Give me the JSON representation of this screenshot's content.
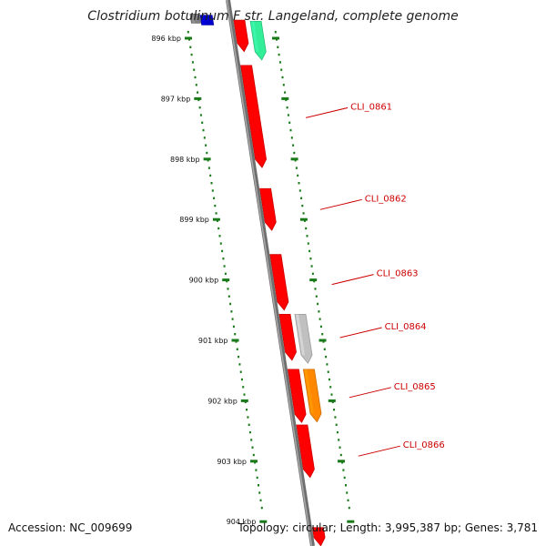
{
  "title": "Clostridium botulinum F str. Langeland, complete genome",
  "colors": {
    "backbone": "#808080",
    "ruler": "#1a7a1a",
    "label": "#cc0000",
    "label_line": "#cc0000"
  },
  "ruler_labels": [
    "896 kbp",
    "897 kbp",
    "898 kbp",
    "899 kbp",
    "900 kbp",
    "901 kbp",
    "902 kbp",
    "903 kbp",
    "904 kbp"
  ],
  "genes": [
    {
      "id": "top-left-gray",
      "start_kbp": 895.6,
      "end_kbp": 895.75,
      "color": "#808080",
      "strand": "minus"
    },
    {
      "id": "top-left-blue",
      "start_kbp": 895.62,
      "end_kbp": 895.78,
      "color": "#0000cc",
      "strand": "minus"
    },
    {
      "id": "red-a",
      "start_kbp": 895.7,
      "end_kbp": 896.22,
      "color": "#ff0000",
      "strand": "plus"
    },
    {
      "id": "teal-a",
      "start_kbp": 895.72,
      "end_kbp": 896.36,
      "color": "#33ee99",
      "strand": "plus"
    },
    {
      "id": "CLI_0861",
      "start_kbp": 896.45,
      "end_kbp": 898.14,
      "color": "#ff0000",
      "strand": "plus"
    },
    {
      "id": "CLI_0862",
      "start_kbp": 898.49,
      "end_kbp": 899.18,
      "color": "#ff0000",
      "strand": "plus"
    },
    {
      "id": "CLI_0863",
      "start_kbp": 899.58,
      "end_kbp": 900.5,
      "color": "#ff0000",
      "strand": "plus"
    },
    {
      "id": "CLI_0864",
      "start_kbp": 900.57,
      "end_kbp": 901.33,
      "color": "#ff0000",
      "strand": "plus"
    },
    {
      "id": "CLI_0864-gray",
      "start_kbp": 900.57,
      "end_kbp": 901.38,
      "color": "#c0c0c0",
      "strand": "plus"
    },
    {
      "id": "CLI_0865",
      "start_kbp": 901.48,
      "end_kbp": 902.36,
      "color": "#ff0000",
      "strand": "plus"
    },
    {
      "id": "CLI_0865-orange",
      "start_kbp": 901.48,
      "end_kbp": 902.35,
      "color": "#ff8800",
      "strand": "plus"
    },
    {
      "id": "CLI_0866",
      "start_kbp": 902.4,
      "end_kbp": 903.27,
      "color": "#ff0000",
      "strand": "plus"
    },
    {
      "id": "bottom-red",
      "start_kbp": 904.1,
      "end_kbp": 904.4,
      "color": "#ff0000",
      "strand": "plus"
    }
  ],
  "gene_labels": [
    {
      "text": "CLI_0861",
      "kbp": 897.18
    },
    {
      "text": "CLI_0862",
      "kbp": 898.7
    },
    {
      "text": "CLI_0863",
      "kbp": 899.94
    },
    {
      "text": "CLI_0864",
      "kbp": 900.82
    },
    {
      "text": "CLI_0865",
      "kbp": 901.81
    },
    {
      "text": "CLI_0866",
      "kbp": 902.78
    }
  ],
  "footer": {
    "accession": "Accession: NC_009699",
    "topology": "Topology: circular; Length: 3,995,387 bp; Genes: 3,781"
  }
}
